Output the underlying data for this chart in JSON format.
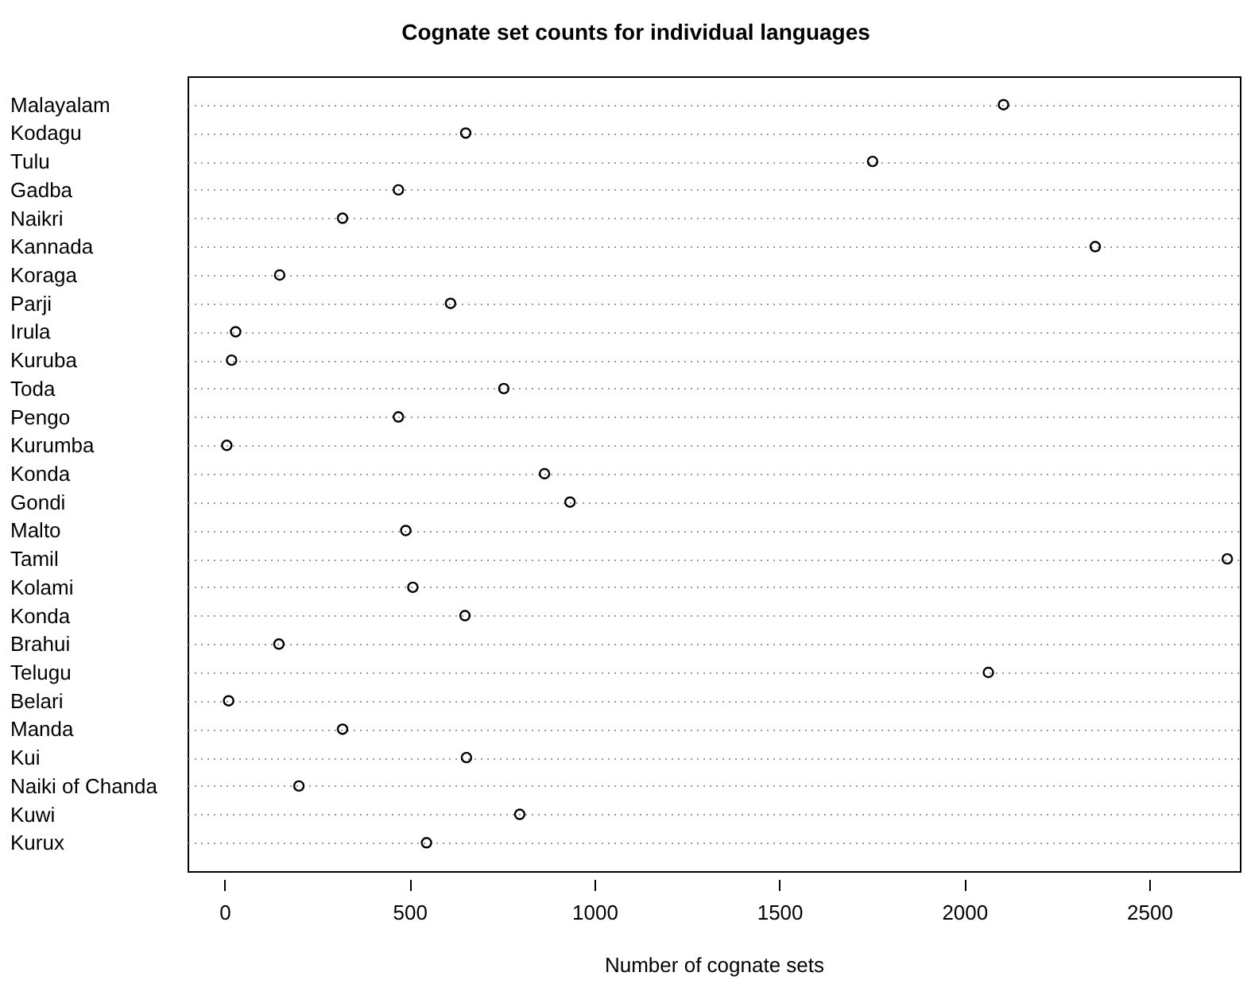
{
  "chart_data": {
    "type": "scatter",
    "title": "Cognate set counts for individual languages",
    "xlabel": "Number of cognate sets",
    "orientation": "horizontal",
    "categories": [
      "Malayalam",
      "Kodagu",
      "Tulu",
      "Gadba",
      "Naikri",
      "Kannada",
      "Koraga",
      "Parji",
      "Irula",
      "Kuruba",
      "Toda",
      "Pengo",
      "Kurumba",
      "Konda",
      "Gondi",
      "Malto",
      "Tamil",
      "Kolami",
      "Konda",
      "Brahui",
      "Telugu",
      "Belari",
      "Manda",
      "Kui",
      "Naiki of Chanda",
      "Kuwi",
      "Kurux"
    ],
    "series": [
      {
        "color": "#000000",
        "values": [
          2106,
          652,
          1752,
          470,
          319,
          2354,
          149,
          611,
          30,
          19,
          755,
          470,
          6,
          865,
          934,
          490,
          2711,
          509,
          650,
          147,
          2065,
          11,
          319,
          654,
          201,
          798,
          546
        ]
      }
    ],
    "xlim": [
      -100,
      2745
    ],
    "xticks": [
      0,
      500,
      1000,
      1500,
      2000,
      2500
    ],
    "grid": "y",
    "marker": "circle",
    "legend": false
  }
}
